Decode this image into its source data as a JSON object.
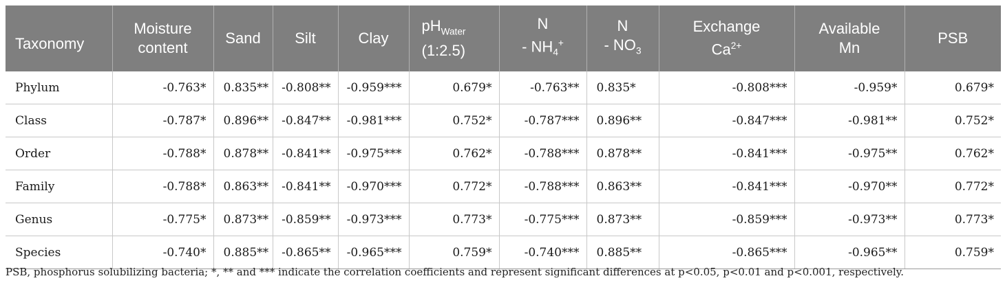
{
  "table": {
    "header": {
      "taxonomy": "Taxonomy",
      "moisture": [
        "Moisture",
        "content"
      ],
      "sand": "Sand",
      "silt": "Silt",
      "clay": "Clay",
      "ph": {
        "main": "pH",
        "sub": "Water",
        "line2": "(1:2.5)"
      },
      "nh4": {
        "line1": "N",
        "dash": "- NH",
        "sub": "4",
        "sup": "+"
      },
      "no3": {
        "line1": "N",
        "dash": "- NO",
        "sub": "3"
      },
      "ca": {
        "line1": "Exchange",
        "main": "Ca",
        "sup": "2+"
      },
      "mn": [
        "Available",
        "Mn"
      ],
      "psb": "PSB"
    },
    "rows": [
      {
        "label": "Phylum",
        "cells": [
          "-0.763*",
          "0.835**",
          "-0.808**",
          "-0.959***",
          "0.679*",
          "-0.763**",
          "0.835*",
          "-0.808***",
          "-0.959*",
          "0.679*"
        ]
      },
      {
        "label": "Class",
        "cells": [
          "-0.787*",
          "0.896**",
          "-0.847**",
          "-0.981***",
          "0.752*",
          "-0.787***",
          "0.896**",
          "-0.847***",
          "-0.981**",
          "0.752*"
        ]
      },
      {
        "label": "Order",
        "cells": [
          "-0.788*",
          "0.878**",
          "-0.841**",
          "-0.975***",
          "0.762*",
          "-0.788***",
          "0.878**",
          "-0.841***",
          "-0.975**",
          "0.762*"
        ]
      },
      {
        "label": "Family",
        "cells": [
          "-0.788*",
          "0.863**",
          "-0.841**",
          "-0.970***",
          "0.772*",
          "-0.788***",
          "0.863**",
          "-0.841***",
          "-0.970**",
          "0.772*"
        ]
      },
      {
        "label": "Genus",
        "cells": [
          "-0.775*",
          "0.873**",
          "-0.859**",
          "-0.973***",
          "0.773*",
          "-0.775***",
          "0.873**",
          "-0.859***",
          "-0.973**",
          "0.773*"
        ]
      },
      {
        "label": "Species",
        "cells": [
          "-0.740*",
          "0.885**",
          "-0.865**",
          "-0.965***",
          "0.759*",
          "-0.740***",
          "0.885**",
          "-0.865***",
          "-0.965**",
          "0.759*"
        ]
      }
    ]
  },
  "footnote": "PSB, phosphorus solubilizing bacteria; *, ** and *** indicate the correlation coefficients and represent significant differences at p<0.05, p<0.01 and p<0.001, respectively."
}
